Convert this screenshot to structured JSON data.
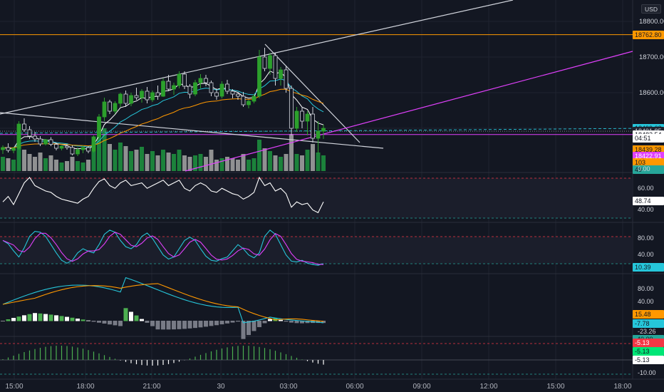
{
  "currency": "USD",
  "price_axis": {
    "labels": [
      {
        "text": "18800.00",
        "y": 18800
      },
      {
        "text": "18700.00",
        "y": 18700
      },
      {
        "text": "18600.00",
        "y": 18600
      }
    ]
  },
  "price_tags": [
    {
      "text": "18762.80",
      "value": 18762.8,
      "color": "#ff9800",
      "fg": "#131722"
    },
    {
      "text": "18499.63",
      "value": 18499.63,
      "color": "#26c6da",
      "fg": "#131722"
    },
    {
      "text": "18491.85",
      "value": 18491.85,
      "color": "#1f2430",
      "fg": "#d1d4dc"
    },
    {
      "text": "18482.54",
      "value": 18482.54,
      "color": "#ffffff",
      "fg": "#131722"
    },
    {
      "text": "04:51",
      "value": 18471.5,
      "color": "#ffffff",
      "fg": "#131722"
    },
    {
      "text": "18439.28",
      "value": 18439.28,
      "color": "#ff9800",
      "fg": "#131722"
    },
    {
      "text": "18422.91",
      "value": 18422.91,
      "color": "#e040fb",
      "fg": "#ffffff"
    }
  ],
  "volume_tags": [
    {
      "text": "103",
      "color": "#ff9800",
      "fg": "#131722"
    },
    {
      "text": "49",
      "color": "#26a69a",
      "fg": "#131722"
    },
    {
      "text": "0.00",
      "color": "",
      "fg": "#d1d4dc"
    }
  ],
  "rsi": {
    "labels": [
      "60.00",
      "40.00"
    ],
    "tag": "48.74",
    "tag_color": "#ffffff"
  },
  "stoch": {
    "labels": [
      "80.00",
      "40.00"
    ],
    "tag": "10.39",
    "tag_color": "#26c6da"
  },
  "pmo": {
    "labels": [
      "80.00",
      "40.00"
    ],
    "tags": [
      {
        "text": "15.48",
        "color": "#ff9800",
        "fg": "#131722"
      },
      {
        "text": "-7.78",
        "color": "#26c6da",
        "fg": "#131722"
      },
      {
        "text": "-23.26",
        "color": "",
        "fg": "#d1d4dc"
      },
      {
        "text": "-40.00",
        "color": "#26a69a",
        "fg": "#131722"
      }
    ]
  },
  "osc": {
    "tags": [
      {
        "text": "-5.13",
        "color": "#f23645",
        "fg": "#ffffff"
      },
      {
        "text": "-5.13",
        "color": "#00e676",
        "fg": "#131722"
      },
      {
        "text": "-5.13",
        "color": "#ffffff",
        "fg": "#131722"
      },
      {
        "text": "-10.00",
        "color": "",
        "fg": "#d1d4dc"
      }
    ]
  },
  "time_axis": [
    "15:00",
    "18:00",
    "21:00",
    "30",
    "03:00",
    "06:00",
    "09:00",
    "12:00",
    "15:00",
    "18:00"
  ],
  "chart_data": {
    "type": "candlestick",
    "symbol_currency": "USD",
    "candles": [
      [
        18440,
        18452,
        18428,
        18446
      ],
      [
        18446,
        18458,
        18432,
        18438
      ],
      [
        18438,
        18448,
        18430,
        18444
      ],
      [
        18444,
        18520,
        18440,
        18512
      ],
      [
        18512,
        18528,
        18490,
        18496
      ],
      [
        18496,
        18506,
        18470,
        18478
      ],
      [
        18478,
        18490,
        18462,
        18470
      ],
      [
        18470,
        18478,
        18450,
        18456
      ],
      [
        18456,
        18470,
        18452,
        18468
      ],
      [
        18468,
        18475,
        18450,
        18455
      ],
      [
        18455,
        18460,
        18438,
        18444
      ],
      [
        18444,
        18452,
        18438,
        18450
      ],
      [
        18450,
        18456,
        18440,
        18446
      ],
      [
        18446,
        18452,
        18424,
        18428
      ],
      [
        18428,
        18446,
        18422,
        18440
      ],
      [
        18440,
        18452,
        18430,
        18446
      ],
      [
        18446,
        18450,
        18430,
        18436
      ],
      [
        18436,
        18480,
        18432,
        18476
      ],
      [
        18476,
        18540,
        18470,
        18532
      ],
      [
        18532,
        18586,
        18520,
        18574
      ],
      [
        18574,
        18580,
        18540,
        18548
      ],
      [
        18548,
        18576,
        18540,
        18570
      ],
      [
        18570,
        18600,
        18560,
        18596
      ],
      [
        18596,
        18606,
        18560,
        18570
      ],
      [
        18570,
        18600,
        18562,
        18592
      ],
      [
        18592,
        18614,
        18580,
        18586
      ],
      [
        18586,
        18610,
        18572,
        18604
      ],
      [
        18604,
        18616,
        18570,
        18580
      ],
      [
        18580,
        18606,
        18574,
        18600
      ],
      [
        18600,
        18620,
        18580,
        18590
      ],
      [
        18590,
        18640,
        18588,
        18632
      ],
      [
        18632,
        18650,
        18604,
        18610
      ],
      [
        18610,
        18628,
        18594,
        18620
      ],
      [
        18620,
        18660,
        18612,
        18652
      ],
      [
        18652,
        18660,
        18610,
        18618
      ],
      [
        18618,
        18624,
        18584,
        18596
      ],
      [
        18596,
        18636,
        18590,
        18628
      ],
      [
        18628,
        18652,
        18612,
        18640
      ],
      [
        18640,
        18650,
        18618,
        18628
      ],
      [
        18628,
        18634,
        18590,
        18600
      ],
      [
        18600,
        18612,
        18580,
        18590
      ],
      [
        18590,
        18632,
        18584,
        18624
      ],
      [
        18624,
        18636,
        18596,
        18604
      ],
      [
        18604,
        18610,
        18584,
        18596
      ],
      [
        18596,
        18602,
        18580,
        18590
      ],
      [
        18590,
        18602,
        18560,
        18566
      ],
      [
        18566,
        18580,
        18556,
        18576
      ],
      [
        18576,
        18596,
        18570,
        18590
      ],
      [
        18590,
        18720,
        18584,
        18700
      ],
      [
        18700,
        18726,
        18660,
        18668
      ],
      [
        18668,
        18712,
        18650,
        18704
      ],
      [
        18704,
        18712,
        18620,
        18640
      ],
      [
        18640,
        18672,
        18620,
        18664
      ],
      [
        18664,
        18676,
        18600,
        18612
      ],
      [
        18612,
        18620,
        18480,
        18500
      ],
      [
        18500,
        18560,
        18490,
        18548
      ],
      [
        18548,
        18560,
        18500,
        18520
      ],
      [
        18520,
        18548,
        18480,
        18540
      ],
      [
        18540,
        18560,
        18460,
        18472
      ],
      [
        18472,
        18520,
        18430,
        18492
      ],
      [
        18492,
        18510,
        18470,
        18500
      ]
    ],
    "volumes": [
      20,
      18,
      16,
      60,
      30,
      24,
      20,
      26,
      18,
      22,
      16,
      12,
      14,
      20,
      14,
      12,
      16,
      40,
      55,
      60,
      38,
      30,
      40,
      35,
      28,
      30,
      34,
      24,
      28,
      22,
      30,
      26,
      24,
      30,
      22,
      20,
      22,
      24,
      20,
      30,
      16,
      18,
      20,
      18,
      16,
      24,
      16,
      18,
      44,
      32,
      28,
      22,
      20,
      24,
      52,
      24,
      22,
      30,
      38,
      26,
      22
    ],
    "moving_averages": [
      {
        "color": "#ffffff",
        "period": "fast"
      },
      {
        "color": "#26c6da",
        "period": "medium"
      },
      {
        "color": "#ff9800",
        "period": "slow"
      }
    ],
    "horizontal_levels": [
      {
        "value": 18762.8,
        "color": "#ff9800"
      },
      {
        "value": 18482.54,
        "color": "#e040fb"
      }
    ]
  }
}
